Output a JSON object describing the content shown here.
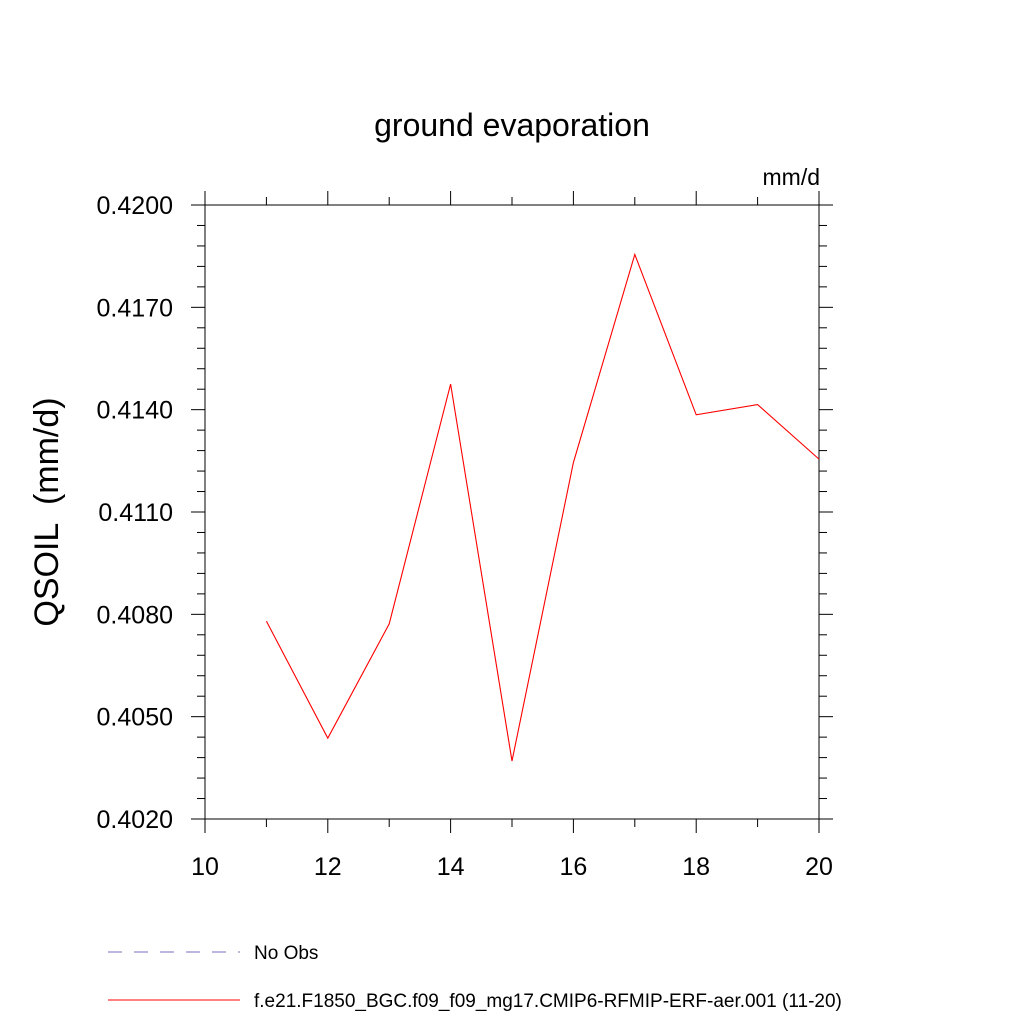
{
  "chart_data": {
    "type": "line",
    "title": "ground evaporation",
    "units_label": "mm/d",
    "ylabel": "QSOIL  (mm/d)",
    "xlabel": "",
    "xlim": [
      10,
      20
    ],
    "ylim": [
      0.402,
      0.42
    ],
    "x_ticks": [
      10,
      12,
      14,
      16,
      18,
      20
    ],
    "x_tick_labels": [
      "10",
      "12",
      "14",
      "16",
      "18",
      "20"
    ],
    "y_ticks": [
      0.402,
      0.405,
      0.408,
      0.411,
      0.414,
      0.417,
      0.42
    ],
    "y_tick_labels": [
      "0.4020",
      "0.4050",
      "0.4080",
      "0.4110",
      "0.4140",
      "0.4170",
      "0.4200"
    ],
    "grid": false,
    "legend_position": "bottom",
    "series": [
      {
        "name": "No Obs",
        "color": "#7a6fbf",
        "dash": "dashed",
        "x": [],
        "y": []
      },
      {
        "name": "f.e21.F1850_BGC.f09_f09_mg17.CMIP6-RFMIP-ERF-aer.001 (11-20)",
        "color": "#ff0000",
        "dash": "solid",
        "x": [
          11,
          12,
          13,
          14,
          15,
          16,
          17,
          18,
          19,
          20
        ],
        "y": [
          0.4078,
          0.40437,
          0.40772,
          0.41475,
          0.4037,
          0.41245,
          0.41855,
          0.41385,
          0.41415,
          0.41255
        ]
      }
    ]
  }
}
